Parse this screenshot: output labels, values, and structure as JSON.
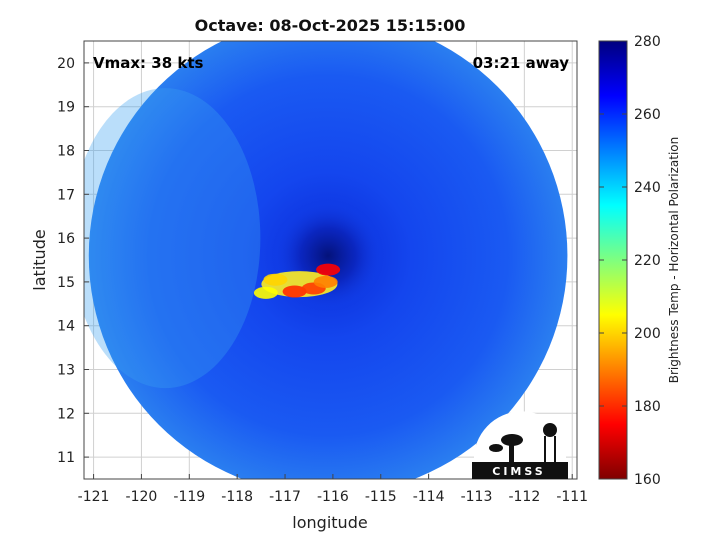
{
  "chart_data": {
    "type": "heatmap",
    "title": "Octave: 08-Oct-2025 15:15:00",
    "xlabel": "longitude",
    "ylabel": "latitude",
    "xlim": [
      -121.2,
      -110.9
    ],
    "ylim": [
      10.5,
      20.5
    ],
    "xticks": [
      -121,
      -120,
      -119,
      -118,
      -117,
      -116,
      -115,
      -114,
      -113,
      -112,
      -111
    ],
    "yticks": [
      11,
      12,
      13,
      14,
      15,
      16,
      17,
      18,
      19,
      20
    ],
    "grid": true,
    "annotations": {
      "vmax": "Vmax: 38 kts",
      "time_away": "03:21 away"
    },
    "colorbar": {
      "label": "Brightness Temp - Horizontal Polarization",
      "range": [
        160,
        280
      ],
      "ticks": [
        160,
        180,
        200,
        220,
        240,
        260,
        280
      ],
      "colormap": "jet"
    },
    "swath": {
      "center_lon": -116.1,
      "center_lat": 15.6,
      "radius_deg": 5.0
    },
    "storm_center": {
      "lon": -116.1,
      "lat": 15.6
    },
    "cold_feature": [
      {
        "lon": -117.2,
        "lat": 15.05,
        "value": 200
      },
      {
        "lon": -116.8,
        "lat": 14.78,
        "value": 180
      },
      {
        "lon": -116.4,
        "lat": 14.85,
        "value": 182
      },
      {
        "lon": -116.15,
        "lat": 15.0,
        "value": 190
      },
      {
        "lon": -116.1,
        "lat": 15.28,
        "value": 175
      },
      {
        "lon": -117.4,
        "lat": 14.75,
        "value": 205
      }
    ],
    "logo": "CIMSS"
  }
}
